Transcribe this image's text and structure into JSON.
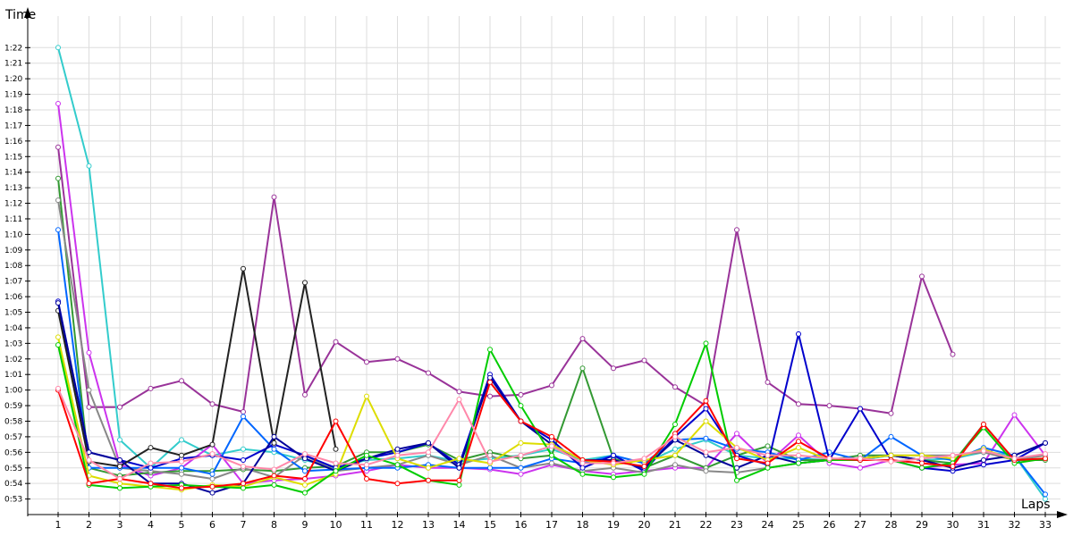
{
  "chart_data": {
    "type": "line",
    "title": "",
    "ylabel": "Time",
    "xlabel": "Laps",
    "x": [
      1,
      2,
      3,
      4,
      5,
      6,
      7,
      8,
      9,
      10,
      11,
      12,
      13,
      14,
      15,
      16,
      17,
      18,
      19,
      20,
      21,
      22,
      23,
      24,
      25,
      26,
      27,
      28,
      29,
      30,
      31,
      32,
      33
    ],
    "y_tick_labels": [
      "0:53",
      "0:54",
      "0:55",
      "0:56",
      "0:57",
      "0:58",
      "0:59",
      "1:00",
      "1:01",
      "1:02",
      "1:03",
      "1:04",
      "1:05",
      "1:06",
      "1:07",
      "1:08",
      "1:09",
      "1:10",
      "1:11",
      "1:12",
      "1:13",
      "1:14",
      "1:15",
      "1:16",
      "1:17",
      "1:18",
      "1:19",
      "1:20",
      "1:21",
      "1:22"
    ],
    "ylim_seconds": [
      51.6,
      84.6
    ],
    "grid": true,
    "series": [
      {
        "name": "purple",
        "color": "#993399",
        "values": [
          75.6,
          58.9,
          58.9,
          60.1,
          60.6,
          59.1,
          58.6,
          72.4,
          59.7,
          63.1,
          61.8,
          62.0,
          61.1,
          59.9,
          59.6,
          59.7,
          60.3,
          63.3,
          61.4,
          61.9,
          60.2,
          59.0,
          70.3,
          60.5,
          59.1,
          59.0,
          58.8,
          58.5,
          67.3,
          62.3,
          null,
          null,
          null
        ]
      },
      {
        "name": "cyan",
        "color": "#33cccc",
        "values": [
          82.0,
          74.4,
          56.8,
          55.0,
          56.8,
          55.8,
          56.2,
          56.0,
          55.5,
          55.0,
          55.5,
          55.6,
          55.8,
          55.4,
          55.6,
          55.8,
          56.2,
          55.5,
          55.8,
          55.3,
          56.2,
          56.8,
          55.8,
          55.6,
          55.6,
          55.5,
          55.5,
          55.8,
          55.5,
          55.6,
          56.0,
          55.8,
          53.0
        ]
      },
      {
        "name": "violet",
        "color": "#cc33ee",
        "values": [
          78.4,
          62.4,
          55.2,
          54.5,
          55.0,
          56.5,
          54.0,
          54.2,
          54.3,
          54.5,
          54.8,
          55.2,
          55.0,
          55.0,
          54.9,
          54.6,
          55.2,
          54.8,
          54.6,
          54.8,
          55.0,
          55.0,
          57.2,
          55.3,
          57.1,
          55.3,
          55.0,
          55.5,
          55.0,
          55.2,
          55.3,
          58.4,
          55.8
        ]
      },
      {
        "name": "dark-green",
        "color": "#339933",
        "values": [
          73.6,
          55.0,
          54.5,
          54.7,
          54.8,
          54.8,
          54.9,
          54.8,
          55.0,
          55.1,
          56.0,
          56.0,
          56.5,
          55.5,
          56.0,
          55.6,
          55.8,
          61.4,
          55.6,
          55.0,
          55.8,
          55.0,
          55.8,
          56.4,
          55.5,
          55.5,
          55.8,
          55.8,
          55.5,
          55.3,
          57.8,
          55.5,
          55.5
        ]
      },
      {
        "name": "grey",
        "color": "#888888",
        "values": [
          72.2,
          60.0,
          55.0,
          54.8,
          54.6,
          54.3,
          55.0,
          54.4,
          55.8,
          54.8,
          55.0,
          55.2,
          55.8,
          55.2,
          55.8,
          55.0,
          55.3,
          54.8,
          55.0,
          54.7,
          55.2,
          54.8,
          54.7,
          55.0,
          55.3,
          55.5,
          55.6,
          55.8,
          55.8,
          55.8,
          56.0,
          55.5,
          55.8
        ]
      },
      {
        "name": "blue",
        "color": "#0066ff",
        "values": [
          70.3,
          55.0,
          55.0,
          55.0,
          55.0,
          54.6,
          58.3,
          56.2,
          54.8,
          54.9,
          55.0,
          55.0,
          55.2,
          55.0,
          55.0,
          55.0,
          55.6,
          55.3,
          55.8,
          55.3,
          56.8,
          56.9,
          56.2,
          56.0,
          55.5,
          56.0,
          55.5,
          57.0,
          55.8,
          55.5,
          56.3,
          55.8,
          53.3
        ]
      },
      {
        "name": "navy",
        "color": "#0000cc",
        "values": [
          65.7,
          56.0,
          55.5,
          55.0,
          55.6,
          55.8,
          55.5,
          56.5,
          55.8,
          55.0,
          55.6,
          56.0,
          56.6,
          55.2,
          61.0,
          58.0,
          56.8,
          55.0,
          55.8,
          54.8,
          57.0,
          58.8,
          55.8,
          55.2,
          63.6,
          55.5,
          58.8,
          55.5,
          55.0,
          54.8,
          55.2,
          55.5,
          56.6
        ]
      },
      {
        "name": "black",
        "color": "#222222",
        "values": [
          65.1,
          55.4,
          55.1,
          56.3,
          55.8,
          56.5,
          67.8,
          56.6,
          66.9,
          56.2,
          null,
          null,
          null,
          null,
          null,
          null,
          null,
          null,
          null,
          null,
          null,
          null,
          null,
          null,
          null,
          null,
          null,
          null,
          null,
          null,
          null,
          null,
          null
        ]
      },
      {
        "name": "dark-blue",
        "color": "#000099",
        "values": [
          65.6,
          56.0,
          55.5,
          54.0,
          54.0,
          53.4,
          54.0,
          57.0,
          55.6,
          54.8,
          55.6,
          56.2,
          56.6,
          55.0,
          60.8,
          58.0,
          56.5,
          55.5,
          55.5,
          55.0,
          56.8,
          55.8,
          55.0,
          55.8,
          55.3,
          55.5,
          55.6,
          55.8,
          55.5,
          55.0,
          55.5,
          55.8,
          56.6
        ]
      },
      {
        "name": "yellow",
        "color": "#dddd00",
        "values": [
          63.4,
          54.5,
          54.0,
          53.8,
          53.6,
          53.9,
          53.8,
          54.4,
          53.9,
          54.6,
          59.6,
          55.6,
          55.0,
          55.6,
          55.3,
          56.6,
          56.5,
          55.5,
          55.2,
          55.5,
          55.8,
          58.0,
          56.3,
          55.5,
          56.3,
          55.5,
          55.6,
          55.8,
          55.8,
          55.6,
          56.2,
          55.5,
          55.6
        ]
      },
      {
        "name": "green",
        "color": "#00cc00",
        "values": [
          62.9,
          53.9,
          53.7,
          53.8,
          53.9,
          53.8,
          53.7,
          53.9,
          53.4,
          54.8,
          55.8,
          55.2,
          54.2,
          53.9,
          62.6,
          59.0,
          55.8,
          54.6,
          54.4,
          54.6,
          57.8,
          63.0,
          54.2,
          55.0,
          55.3,
          55.5,
          55.5,
          55.5,
          55.0,
          55.3,
          57.6,
          55.3,
          55.6
        ]
      },
      {
        "name": "red",
        "color": "#ff0000",
        "values": [
          60.0,
          54.0,
          54.3,
          54.0,
          53.7,
          53.8,
          54.0,
          54.5,
          54.3,
          58.0,
          54.3,
          54.0,
          54.2,
          54.2,
          60.5,
          58.0,
          57.0,
          55.5,
          55.4,
          55.1,
          57.2,
          59.3,
          55.6,
          55.3,
          56.7,
          55.6,
          55.5,
          55.5,
          55.3,
          55.1,
          57.8,
          55.5,
          55.6
        ]
      },
      {
        "name": "pink",
        "color": "#ff88aa",
        "values": [
          60.1,
          55.5,
          54.3,
          55.3,
          55.4,
          55.9,
          55.1,
          54.9,
          55.9,
          55.3,
          55.2,
          55.8,
          56.0,
          59.4,
          55.4,
          55.8,
          56.4,
          55.3,
          55.3,
          55.6,
          57.0,
          56.0,
          56.3,
          55.8,
          55.8,
          55.6,
          55.6,
          55.4,
          55.6,
          55.8,
          56.1,
          55.6,
          55.9
        ]
      }
    ]
  }
}
